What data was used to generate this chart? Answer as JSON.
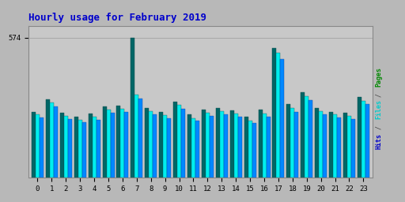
{
  "title": "Hourly usage for February 2019",
  "title_color": "#0000cc",
  "title_fontsize": 9,
  "hours": [
    0,
    1,
    2,
    3,
    4,
    5,
    6,
    7,
    8,
    9,
    10,
    11,
    12,
    13,
    14,
    15,
    16,
    17,
    18,
    19,
    20,
    21,
    22,
    23
  ],
  "pages": [
    270,
    320,
    265,
    250,
    262,
    290,
    295,
    574,
    285,
    268,
    310,
    258,
    278,
    285,
    275,
    248,
    278,
    530,
    300,
    350,
    285,
    270,
    265,
    330
  ],
  "files": [
    258,
    308,
    252,
    238,
    250,
    278,
    283,
    340,
    272,
    255,
    298,
    244,
    265,
    272,
    262,
    235,
    264,
    510,
    285,
    335,
    272,
    258,
    252,
    315
  ],
  "hits": [
    245,
    293,
    240,
    226,
    238,
    265,
    270,
    325,
    258,
    242,
    283,
    232,
    252,
    258,
    249,
    223,
    250,
    485,
    270,
    318,
    258,
    245,
    240,
    300
  ],
  "pages_color": "#006666",
  "files_color": "#00eeee",
  "hits_color": "#0088ff",
  "bar_width": 0.28,
  "ylim": [
    0,
    620
  ],
  "ytick_val": 574,
  "background_color": "#b8b8b8",
  "plot_bg_color": "#c8c8c8",
  "grid_color": "#aaaaaa",
  "border_color": "#888888",
  "right_label_pages_color": "#008800",
  "right_label_files_color": "#00cccc",
  "right_label_hits_color": "#0000cc"
}
